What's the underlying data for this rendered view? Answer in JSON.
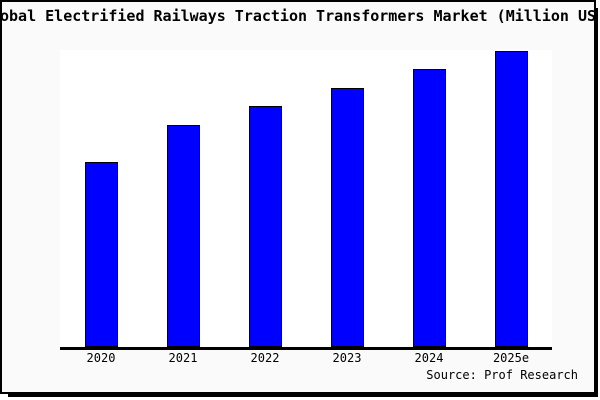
{
  "window": {
    "background_color": "#fafafa",
    "border_color": "#000000"
  },
  "chart_data": {
    "type": "bar",
    "title": "Global Electrified Railways Traction Transformers Market (Million USD)",
    "categories": [
      "2020",
      "2021",
      "2022",
      "2023",
      "2024",
      "2025e"
    ],
    "values": [
      500,
      600,
      650,
      700,
      750,
      800
    ],
    "values_note": "relative estimates; y-axis has no ticks or labels in the chart",
    "xlabel": "",
    "ylabel": "",
    "ylim": [
      0,
      802
    ],
    "grid": false,
    "legend": null,
    "bar_color": "#0000ff",
    "bar_edge_color": "#000000",
    "plot_background": "#ffffff"
  },
  "source": {
    "label": "Source: Prof Research"
  }
}
